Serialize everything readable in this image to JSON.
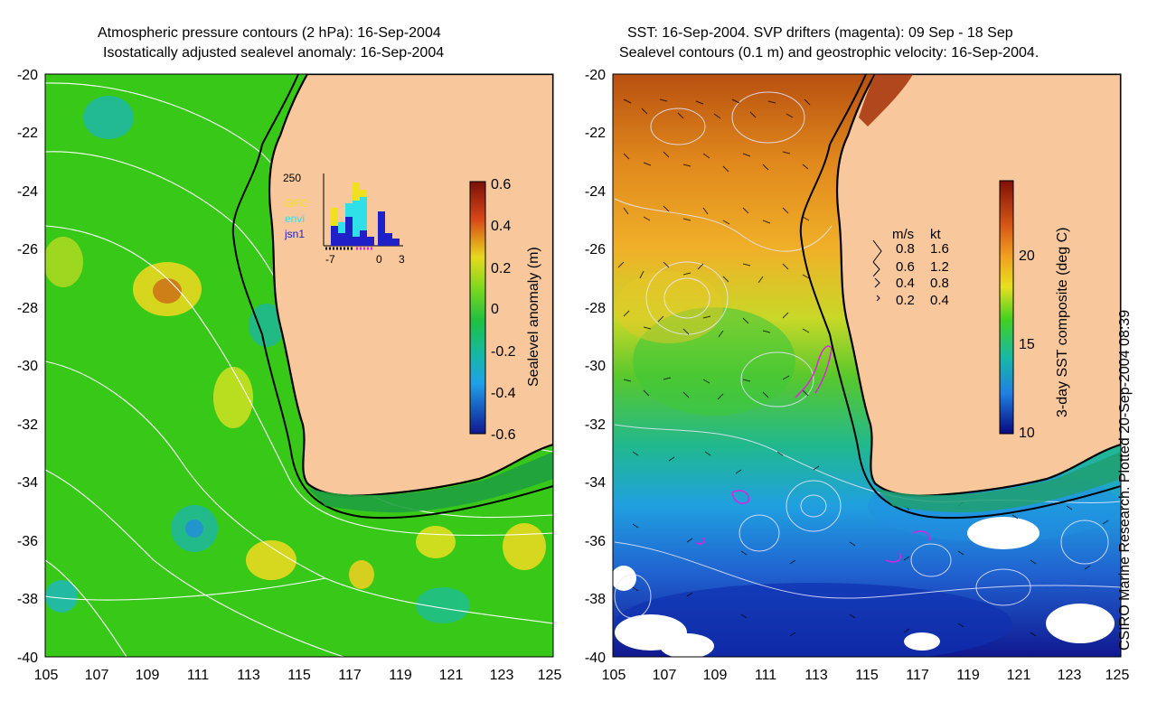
{
  "left_panel": {
    "title_line1": "Atmospheric pressure contours (2 hPa): 16-Sep-2004",
    "title_line2": "Isostatically adjusted sealevel anomaly: 16-Sep-2004",
    "colorbar": {
      "label": "Sealevel anomaly (m)",
      "ticks": [
        "0.6",
        "0.4",
        "0.2",
        "0",
        "-0.2",
        "-0.4",
        "-0.6"
      ]
    },
    "inset": {
      "ymax_label": "250",
      "legend": [
        "GFO",
        "envi",
        "jsn1"
      ],
      "legend_colors": [
        "#f0e020",
        "#30e0e8",
        "#2020c8"
      ],
      "x_ticks": [
        "-7",
        "0",
        "3"
      ]
    }
  },
  "right_panel": {
    "title_line1": "SST: 16-Sep-2004. SVP drifters (magenta): 09 Sep - 18 Sep",
    "title_line2": "Sealevel contours (0.1 m) and geostrophic velocity: 16-Sep-2004.",
    "colorbar": {
      "label": "3-day SST composite (deg C)",
      "ticks": [
        "20",
        "15",
        "10"
      ]
    },
    "velocity_legend": {
      "header_ms": "m/s",
      "header_kt": "kt",
      "rows": [
        {
          "ms": "0.8",
          "kt": "1.6"
        },
        {
          "ms": "0.6",
          "kt": "1.2"
        },
        {
          "ms": "0.4",
          "kt": "0.8"
        },
        {
          "ms": "0.2",
          "kt": "0.4"
        }
      ]
    }
  },
  "axes": {
    "y_ticks": [
      "-20",
      "-22",
      "-24",
      "-26",
      "-28",
      "-30",
      "-32",
      "-34",
      "-36",
      "-38",
      "-40"
    ],
    "x_ticks": [
      "105",
      "107",
      "109",
      "111",
      "113",
      "115",
      "117",
      "119",
      "121",
      "123",
      "125"
    ]
  },
  "credit": "CSIRO Marine Research. Plotted 20-Sep-2004 08:39",
  "colors": {
    "land": "#f8c89c",
    "ocean_green": "#38c818",
    "coast": "#000000"
  }
}
